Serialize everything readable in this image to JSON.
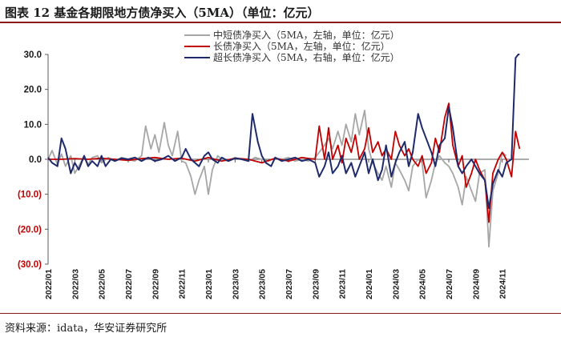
{
  "header": {
    "title": "图表 12 基金各期限地方债净买入（5MA）（单位：亿元）"
  },
  "footer": {
    "source": "资料来源：idata，华安证券研究所"
  },
  "colors": {
    "rule": "#8b1a1a",
    "negative_tick": "#c00000",
    "positive_tick": "#1a1a1a"
  },
  "chart_data": {
    "type": "line",
    "title": "",
    "xlabel": "",
    "ylabel": "",
    "ylim": [
      -30,
      30
    ],
    "yticks": [
      {
        "value": 30,
        "label": "30.0"
      },
      {
        "value": 20,
        "label": "20.0"
      },
      {
        "value": 10,
        "label": "10.0"
      },
      {
        "value": 0,
        "label": "0.0"
      },
      {
        "value": -10,
        "label": "(10.0)"
      },
      {
        "value": -20,
        "label": "(20.0)"
      },
      {
        "value": -30,
        "label": "(30.0)"
      }
    ],
    "x_range": [
      0,
      36
    ],
    "x_unit": "months since 2022/01",
    "xticks": [
      "2022/01",
      "2022/03",
      "2022/05",
      "2022/07",
      "2022/09",
      "2022/11",
      "2023/01",
      "2023/03",
      "2023/05",
      "2023/07",
      "2023/09",
      "2023/11",
      "2024/01",
      "2024/03",
      "2024/05",
      "2024/07",
      "2024/09",
      "2024/11"
    ],
    "legend_position": "top-center",
    "series": [
      {
        "name": "中短债净买入（5MA，左轴，单位：亿元）",
        "color": "#a6a6a6",
        "points": [
          [
            0,
            0
          ],
          [
            0.3,
            2.5
          ],
          [
            0.7,
            -1.5
          ],
          [
            1.0,
            1.5
          ],
          [
            1.3,
            -2
          ],
          [
            1.7,
            1
          ],
          [
            2.0,
            -4
          ],
          [
            2.3,
            -2
          ],
          [
            2.7,
            1
          ],
          [
            3.0,
            -1.5
          ],
          [
            3.3,
            0.5
          ],
          [
            3.7,
            1
          ],
          [
            4.0,
            -1
          ],
          [
            4.5,
            0.5
          ],
          [
            5.0,
            -0.5
          ],
          [
            5.5,
            0.5
          ],
          [
            6.0,
            0
          ],
          [
            6.5,
            -0.5
          ],
          [
            7.0,
            1
          ],
          [
            7.3,
            9.5
          ],
          [
            7.7,
            3
          ],
          [
            8.0,
            7
          ],
          [
            8.3,
            2
          ],
          [
            8.7,
            10.5
          ],
          [
            9.0,
            4
          ],
          [
            9.3,
            1
          ],
          [
            9.7,
            8
          ],
          [
            10.0,
            -0.5
          ],
          [
            10.3,
            -1
          ],
          [
            10.7,
            -5
          ],
          [
            11.0,
            -10
          ],
          [
            11.3,
            -6
          ],
          [
            11.7,
            -2
          ],
          [
            12.0,
            -10
          ],
          [
            12.3,
            -3
          ],
          [
            12.7,
            1
          ],
          [
            13.0,
            0
          ],
          [
            13.5,
            -0.5
          ],
          [
            14.0,
            0.5
          ],
          [
            14.5,
            0
          ],
          [
            15.0,
            -0.5
          ],
          [
            15.5,
            0.5
          ],
          [
            16.0,
            0
          ],
          [
            16.5,
            -0.5
          ],
          [
            17.0,
            0.3
          ],
          [
            17.5,
            0
          ],
          [
            18.0,
            0.5
          ],
          [
            18.5,
            -0.5
          ],
          [
            19.0,
            0
          ],
          [
            19.5,
            -0.5
          ],
          [
            20.0,
            0.5
          ],
          [
            20.3,
            2
          ],
          [
            20.7,
            4
          ],
          [
            21.0,
            6
          ],
          [
            21.3,
            3
          ],
          [
            21.7,
            8
          ],
          [
            22.0,
            4
          ],
          [
            22.3,
            10
          ],
          [
            22.7,
            5
          ],
          [
            23.0,
            13
          ],
          [
            23.3,
            7
          ],
          [
            23.7,
            14
          ],
          [
            24.0,
            3
          ],
          [
            24.3,
            -1
          ],
          [
            24.7,
            -4
          ],
          [
            25.0,
            -6
          ],
          [
            25.3,
            -2
          ],
          [
            25.7,
            -8
          ],
          [
            26.0,
            -1
          ],
          [
            26.3,
            -3
          ],
          [
            26.7,
            -6
          ],
          [
            27.0,
            -9
          ],
          [
            27.3,
            -2
          ],
          [
            27.7,
            0
          ],
          [
            28.0,
            -1
          ],
          [
            28.3,
            -11
          ],
          [
            28.7,
            -6
          ],
          [
            29.0,
            -1
          ],
          [
            29.3,
            1
          ],
          [
            29.7,
            -1
          ],
          [
            30.0,
            -2
          ],
          [
            30.3,
            -4
          ],
          [
            30.7,
            -8
          ],
          [
            31.0,
            -13
          ],
          [
            31.3,
            -5
          ],
          [
            31.7,
            -9
          ],
          [
            32.0,
            -12
          ],
          [
            32.3,
            -4
          ],
          [
            32.7,
            -3
          ],
          [
            33.0,
            -25
          ],
          [
            33.3,
            -9
          ],
          [
            33.7,
            -4
          ],
          [
            34.0,
            2
          ],
          [
            34.3,
            1
          ]
        ]
      },
      {
        "name": "长债净买入（5MA，左轴，单位：亿元）",
        "color": "#c00000",
        "points": [
          [
            0,
            0
          ],
          [
            1,
            0
          ],
          [
            2,
            0.2
          ],
          [
            3,
            0
          ],
          [
            4,
            0.3
          ],
          [
            5,
            0
          ],
          [
            6,
            -0.3
          ],
          [
            7,
            0.2
          ],
          [
            8,
            0.5
          ],
          [
            9,
            0
          ],
          [
            10,
            0.3
          ],
          [
            11,
            -0.5
          ],
          [
            12,
            0.5
          ],
          [
            13,
            -0.5
          ],
          [
            14,
            0.3
          ],
          [
            15,
            0
          ],
          [
            16,
            -1
          ],
          [
            17,
            0.3
          ],
          [
            18,
            -0.5
          ],
          [
            19,
            0.5
          ],
          [
            20,
            0
          ],
          [
            20.3,
            9.5
          ],
          [
            20.7,
            0
          ],
          [
            21.0,
            9
          ],
          [
            21.3,
            0
          ],
          [
            21.7,
            4
          ],
          [
            22.0,
            -1
          ],
          [
            22.3,
            6
          ],
          [
            22.7,
            2
          ],
          [
            23.0,
            7
          ],
          [
            23.3,
            0
          ],
          [
            23.7,
            3
          ],
          [
            24.0,
            9
          ],
          [
            24.3,
            2
          ],
          [
            24.7,
            5
          ],
          [
            25.0,
            1
          ],
          [
            25.3,
            3
          ],
          [
            25.7,
            0
          ],
          [
            26.0,
            8
          ],
          [
            26.3,
            4
          ],
          [
            26.7,
            1
          ],
          [
            27.0,
            3
          ],
          [
            27.3,
            0
          ],
          [
            27.7,
            -2
          ],
          [
            28.0,
            1
          ],
          [
            28.3,
            -4
          ],
          [
            28.7,
            -1
          ],
          [
            29.0,
            6
          ],
          [
            29.3,
            2
          ],
          [
            29.7,
            12
          ],
          [
            30.0,
            16
          ],
          [
            30.3,
            4
          ],
          [
            30.7,
            -2
          ],
          [
            31.0,
            1
          ],
          [
            31.3,
            -8
          ],
          [
            31.7,
            -4
          ],
          [
            32.0,
            0
          ],
          [
            32.3,
            -3
          ],
          [
            32.7,
            -6
          ],
          [
            33.0,
            -18
          ],
          [
            33.3,
            -4
          ],
          [
            33.7,
            0
          ],
          [
            34.0,
            2
          ],
          [
            34.3,
            0
          ],
          [
            34.7,
            -5
          ],
          [
            35.0,
            8
          ],
          [
            35.3,
            3
          ]
        ]
      },
      {
        "name": "超长债净买入（5MA，右轴，单位：亿元）",
        "color": "#1f2a6b",
        "points": [
          [
            0,
            0.5
          ],
          [
            0.3,
            -1
          ],
          [
            0.7,
            -2
          ],
          [
            1.0,
            6
          ],
          [
            1.3,
            3
          ],
          [
            1.7,
            -4
          ],
          [
            2.0,
            -1
          ],
          [
            2.3,
            -3
          ],
          [
            2.7,
            1
          ],
          [
            3.0,
            -2
          ],
          [
            3.3,
            -0.5
          ],
          [
            3.7,
            -2
          ],
          [
            4.0,
            1
          ],
          [
            4.3,
            -2
          ],
          [
            4.7,
            0
          ],
          [
            5.0,
            -0.5
          ],
          [
            5.5,
            0.3
          ],
          [
            6.0,
            0
          ],
          [
            6.5,
            0.5
          ],
          [
            7.0,
            -0.5
          ],
          [
            7.5,
            0.5
          ],
          [
            8.0,
            -0.5
          ],
          [
            8.5,
            0
          ],
          [
            9.0,
            1
          ],
          [
            9.5,
            -0.5
          ],
          [
            10.0,
            0.5
          ],
          [
            10.3,
            3
          ],
          [
            10.7,
            0
          ],
          [
            11.0,
            -1
          ],
          [
            11.3,
            -2
          ],
          [
            11.7,
            1
          ],
          [
            12.0,
            2
          ],
          [
            12.3,
            0
          ],
          [
            12.7,
            -1
          ],
          [
            13.0,
            0.5
          ],
          [
            13.5,
            -0.5
          ],
          [
            14.0,
            0.3
          ],
          [
            14.5,
            0
          ],
          [
            15.0,
            -0.5
          ],
          [
            15.3,
            13
          ],
          [
            15.7,
            5
          ],
          [
            16.0,
            1
          ],
          [
            16.3,
            -1
          ],
          [
            16.7,
            -2
          ],
          [
            17.0,
            0.5
          ],
          [
            17.5,
            -0.5
          ],
          [
            18.0,
            0
          ],
          [
            18.5,
            0.5
          ],
          [
            19.0,
            -0.5
          ],
          [
            19.5,
            0
          ],
          [
            20.0,
            -1
          ],
          [
            20.3,
            -5
          ],
          [
            20.7,
            -2
          ],
          [
            21.0,
            2
          ],
          [
            21.3,
            -4
          ],
          [
            21.7,
            -2
          ],
          [
            22.0,
            1
          ],
          [
            22.3,
            -4
          ],
          [
            22.7,
            -1
          ],
          [
            23.0,
            -5
          ],
          [
            23.3,
            -2
          ],
          [
            23.7,
            2
          ],
          [
            24.0,
            -4
          ],
          [
            24.3,
            0
          ],
          [
            24.7,
            -6
          ],
          [
            25.0,
            -3
          ],
          [
            25.3,
            4
          ],
          [
            25.7,
            -5
          ],
          [
            26.0,
            -1
          ],
          [
            26.3,
            2
          ],
          [
            26.7,
            5
          ],
          [
            27.0,
            -2
          ],
          [
            27.3,
            2
          ],
          [
            27.7,
            13
          ],
          [
            28.0,
            9
          ],
          [
            28.3,
            6
          ],
          [
            28.7,
            2
          ],
          [
            29.0,
            -2
          ],
          [
            29.3,
            4
          ],
          [
            29.7,
            6
          ],
          [
            30.0,
            15
          ],
          [
            30.3,
            9
          ],
          [
            30.7,
            -2
          ],
          [
            31.0,
            -4
          ],
          [
            31.3,
            -2
          ],
          [
            31.7,
            0
          ],
          [
            32.0,
            -2
          ],
          [
            32.3,
            -4
          ],
          [
            32.7,
            -6
          ],
          [
            33.0,
            -14
          ],
          [
            33.3,
            -7
          ],
          [
            33.7,
            -3
          ],
          [
            34.0,
            -5
          ],
          [
            34.3,
            -1
          ],
          [
            34.7,
            0
          ],
          [
            35.0,
            29
          ],
          [
            35.2,
            30
          ],
          [
            35.3,
            30
          ]
        ]
      }
    ]
  }
}
